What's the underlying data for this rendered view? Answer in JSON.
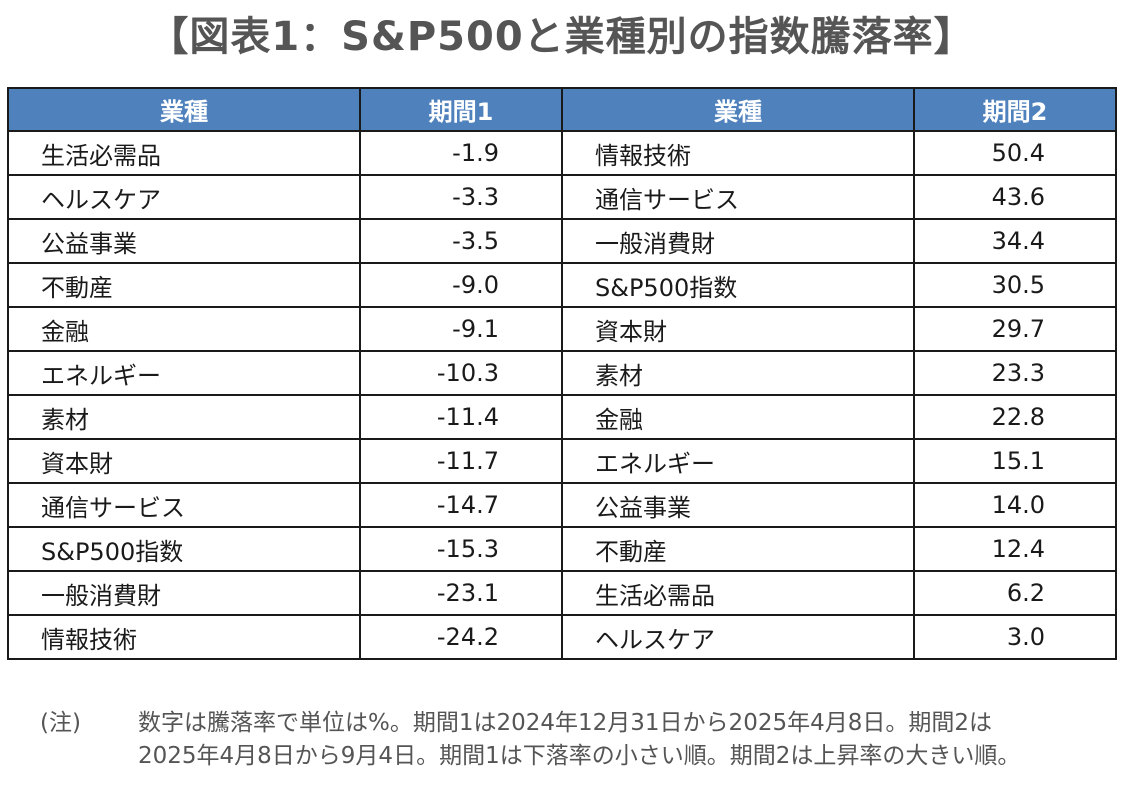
{
  "title": "【図表1：S&P500と業種別の指数騰落率】",
  "table": {
    "headers": [
      "業種",
      "期間1",
      "業種",
      "期間2"
    ],
    "rows": [
      [
        "生活必需品",
        "-1.9",
        "情報技術",
        "50.4"
      ],
      [
        "ヘルスケア",
        "-3.3",
        "通信サービス",
        "43.6"
      ],
      [
        "公益事業",
        "-3.5",
        "一般消費財",
        "34.4"
      ],
      [
        "不動産",
        "-9.0",
        "S&P500指数",
        "30.5"
      ],
      [
        "金融",
        "-9.1",
        "資本財",
        "29.7"
      ],
      [
        "エネルギー",
        "-10.3",
        "素材",
        "23.3"
      ],
      [
        "素材",
        "-11.4",
        "金融",
        "22.8"
      ],
      [
        "資本財",
        "-11.7",
        "エネルギー",
        "15.1"
      ],
      [
        "通信サービス",
        "-14.7",
        "公益事業",
        "14.0"
      ],
      [
        "S&P500指数",
        "-15.3",
        "不動産",
        "12.4"
      ],
      [
        "一般消費財",
        "-23.1",
        "生活必需品",
        "6.2"
      ],
      [
        "情報技術",
        "-24.2",
        "ヘルスケア",
        "3.0"
      ]
    ]
  },
  "note": {
    "mark": "(注)",
    "line1": "数字は騰落率で単位は%。期間1は2024年12月31日から2025年4月8日。期間2は",
    "line2": "2025年4月8日から9月4日。期間1は下落率の小さい順。期間2は上昇率の大きい順。"
  },
  "colors": {
    "header_bg": "#4f81bd",
    "header_text": "#ffffff",
    "title_text": "#555555",
    "border": "#1a1a1a"
  }
}
